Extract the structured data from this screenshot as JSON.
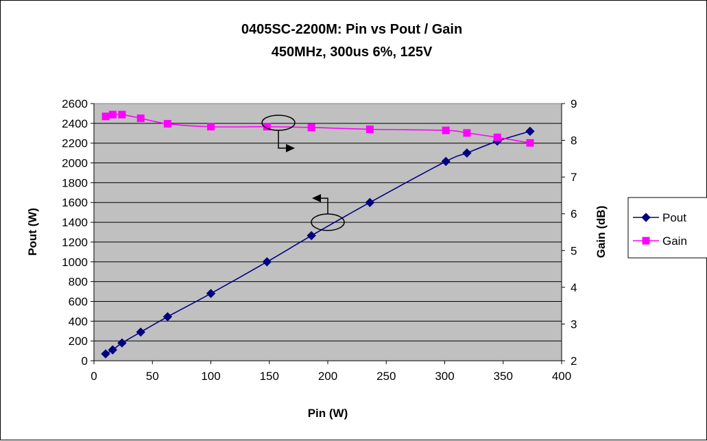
{
  "chart_data": {
    "type": "line",
    "title": "0405SC-2200M:  Pin vs Pout / Gain",
    "subtitle": "450MHz, 300us 6%, 125V",
    "xlabel": "Pin (W)",
    "ylabel": "Pout (W)",
    "y2label": "Gain (dB)",
    "xlim": [
      0,
      400
    ],
    "ylim": [
      0,
      2600
    ],
    "y2lim": [
      2,
      9
    ],
    "x_ticks": [
      0,
      50,
      100,
      150,
      200,
      250,
      300,
      350,
      400
    ],
    "y_ticks": [
      0,
      200,
      400,
      600,
      800,
      1000,
      1200,
      1400,
      1600,
      1800,
      2000,
      2200,
      2400,
      2600
    ],
    "y2_ticks": [
      2,
      3,
      4,
      5,
      6,
      7,
      8,
      9
    ],
    "grid": true,
    "plot_background": "#c0c0c0",
    "legend_position": "right",
    "series": [
      {
        "name": "Pout",
        "axis": "left",
        "color": "#000080",
        "marker": "diamond",
        "x": [
          10,
          16,
          24,
          40,
          63,
          100,
          148,
          186,
          236,
          301,
          319,
          345,
          373
        ],
        "y": [
          70,
          110,
          180,
          290,
          445,
          680,
          1000,
          1265,
          1600,
          2015,
          2100,
          2220,
          2320
        ]
      },
      {
        "name": "Gain",
        "axis": "right",
        "color": "#ff00ff",
        "marker": "square",
        "x": [
          10,
          16,
          24,
          40,
          63,
          100,
          148,
          186,
          236,
          301,
          319,
          345,
          373
        ],
        "y": [
          8.65,
          8.7,
          8.7,
          8.6,
          8.45,
          8.37,
          8.37,
          8.35,
          8.3,
          8.27,
          8.2,
          8.08,
          7.93
        ]
      }
    ]
  }
}
